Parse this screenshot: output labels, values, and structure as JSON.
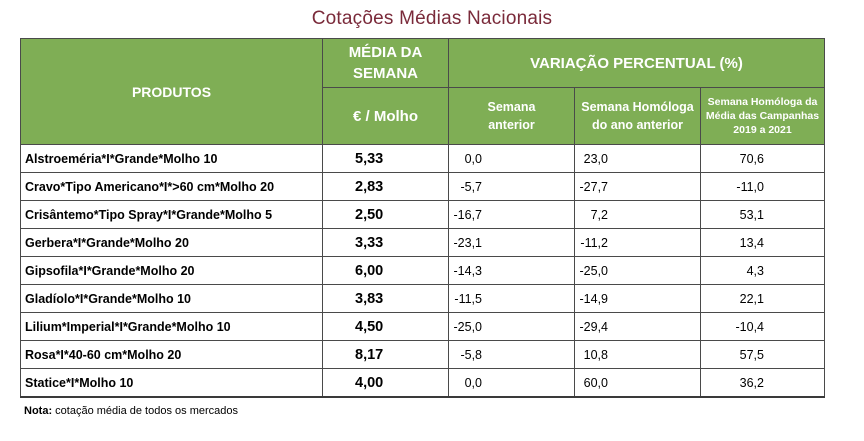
{
  "title": "Cotações Médias Nacionais",
  "headers": {
    "produtos": "PRODUTOS",
    "media_semana": "MÉDIA DA SEMANA",
    "unit": "€ / Molho",
    "variacao": "VARIAÇÃO PERCENTUAL (%)",
    "semana_anterior": "Semana anterior",
    "semana_homologa": "Semana Homóloga do ano anterior",
    "semana_homologa_media": "Semana Homóloga da Média das Campanhas 2019 a 2021"
  },
  "rows": [
    {
      "produto": "Alstroeméria*I*Grande*Molho 10",
      "media": "5,33",
      "anterior": "0,0",
      "homologa": "23,0",
      "campanhas": "70,6"
    },
    {
      "produto": "Cravo*Tipo Americano*I*>60 cm*Molho 20",
      "media": "2,83",
      "anterior": "-5,7",
      "homologa": "-27,7",
      "campanhas": "-11,0"
    },
    {
      "produto": "Crisântemo*Tipo Spray*I*Grande*Molho 5",
      "media": "2,50",
      "anterior": "-16,7",
      "homologa": "7,2",
      "campanhas": "53,1"
    },
    {
      "produto": "Gerbera*I*Grande*Molho 20",
      "media": "3,33",
      "anterior": "-23,1",
      "homologa": "-11,2",
      "campanhas": "13,4"
    },
    {
      "produto": "Gipsofila*I*Grande*Molho 20",
      "media": "6,00",
      "anterior": "-14,3",
      "homologa": "-25,0",
      "campanhas": "4,3"
    },
    {
      "produto": "Gladíolo*I*Grande*Molho 10",
      "media": "3,83",
      "anterior": "-11,5",
      "homologa": "-14,9",
      "campanhas": "22,1"
    },
    {
      "produto": "Lilium*Imperial*I*Grande*Molho 10",
      "media": "4,50",
      "anterior": "-25,0",
      "homologa": "-29,4",
      "campanhas": "-10,4"
    },
    {
      "produto": "Rosa*I*40-60 cm*Molho 20",
      "media": "8,17",
      "anterior": "-5,8",
      "homologa": "10,8",
      "campanhas": "57,5"
    },
    {
      "produto": "Statice*I*Molho 10",
      "media": "4,00",
      "anterior": "0,0",
      "homologa": "60,0",
      "campanhas": "36,2"
    }
  ],
  "note": {
    "label": "Nota:",
    "text": " cotação média de todos os mercados"
  },
  "colors": {
    "header_bg": "#7fae55",
    "title": "#7a2a3a"
  }
}
